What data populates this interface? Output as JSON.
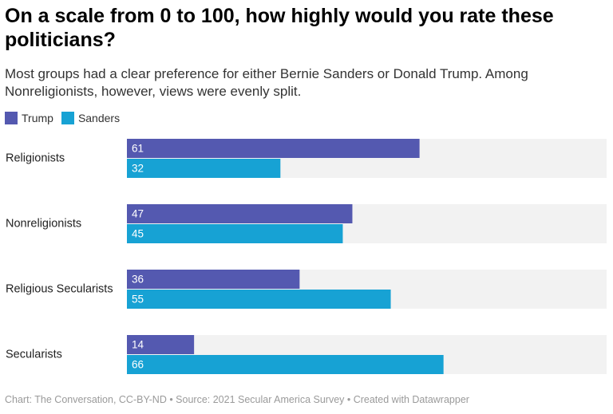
{
  "header": {
    "title": "On a scale from 0 to 100, how highly would you rate these politicians?",
    "subtitle": "Most groups had a clear preference for either Bernie Sanders or Donald Trump. Among Nonreligionists, however, views were evenly split."
  },
  "legend": {
    "items": [
      {
        "label": "Trump",
        "color": "#5459b0"
      },
      {
        "label": "Sanders",
        "color": "#17a2d4"
      }
    ]
  },
  "footer": {
    "text": "Chart: The Conversation, CC-BY-ND • Source: 2021 Secular America Survey • Created with Datawrapper"
  },
  "chart_data": {
    "type": "bar",
    "orientation": "horizontal",
    "title": "On a scale from 0 to 100, how highly would you rate these politicians?",
    "categories": [
      "Religionists",
      "Nonreligionists",
      "Religious Secularists",
      "Secularists"
    ],
    "series": [
      {
        "name": "Trump",
        "color": "#5459b0",
        "values": [
          61,
          47,
          36,
          14
        ]
      },
      {
        "name": "Sanders",
        "color": "#17a2d4",
        "values": [
          32,
          45,
          55,
          66
        ]
      }
    ],
    "xlim": [
      0,
      100
    ],
    "background_color": "#f2f2f2",
    "label_color": "#ffffff",
    "category_label_color": "#222222"
  }
}
